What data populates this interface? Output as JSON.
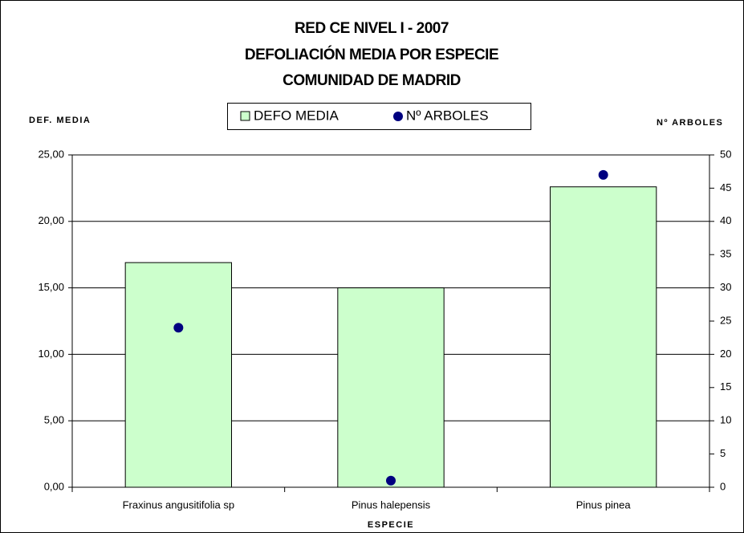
{
  "chart_data": {
    "type": "bar",
    "title": [
      "RED CE NIVEL I - 2007",
      "DEFOLIACIÓN MEDIA POR ESPECIE",
      "COMUNIDAD DE MADRID"
    ],
    "ylabel": "DEF. MEDIA",
    "y2label": "Nº ARBOLES",
    "xlabel": "ESPECIE",
    "categories": [
      "Fraxinus angusitifolia sp",
      "Pinus halepensis",
      "Pinus pinea"
    ],
    "series": [
      {
        "name": "DEFO MEDIA",
        "type": "bar",
        "color": "#ccffcc",
        "values": [
          16.9,
          15.0,
          22.6
        ]
      },
      {
        "name": "Nº ARBOLES",
        "type": "scatter",
        "color": "#000080",
        "axis": "y2",
        "values": [
          24,
          1,
          47
        ]
      }
    ],
    "ylim": [
      0,
      25
    ],
    "yticks": [
      {
        "value": 0,
        "label": "0,00"
      },
      {
        "value": 5,
        "label": "5,00"
      },
      {
        "value": 10,
        "label": "10,00"
      },
      {
        "value": 15,
        "label": "15,00"
      },
      {
        "value": 20,
        "label": "20,00"
      },
      {
        "value": 25,
        "label": "25,00"
      }
    ],
    "y2lim": [
      0,
      50
    ],
    "y2ticks": [
      0,
      5,
      10,
      15,
      20,
      25,
      30,
      35,
      40,
      45,
      50
    ],
    "grid": true,
    "legend": "top"
  }
}
